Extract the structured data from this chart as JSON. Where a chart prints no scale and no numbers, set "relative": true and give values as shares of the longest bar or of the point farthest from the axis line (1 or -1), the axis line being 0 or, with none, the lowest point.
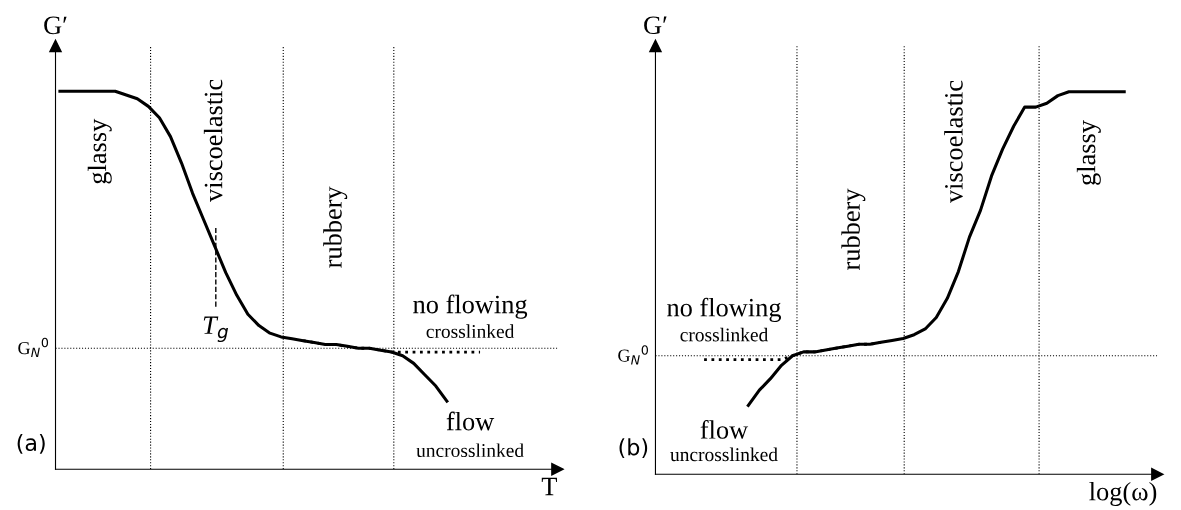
{
  "chart_data": [
    {
      "type": "line",
      "relative": true,
      "xlabel": "T",
      "ylabel": "G′",
      "grid": false,
      "legend": false,
      "marker": "none",
      "categories": [
        null,
        null,
        null,
        null,
        null,
        null,
        null,
        null,
        null,
        null,
        null,
        null,
        null,
        null,
        null,
        null,
        null,
        null,
        null,
        null,
        null,
        null,
        null,
        null,
        null,
        null,
        null,
        null,
        null,
        null,
        null,
        null,
        null,
        null,
        null,
        null,
        null,
        null,
        null,
        null,
        null,
        null,
        null,
        null,
        null
      ],
      "series": [
        {
          "color": "#000000",
          "line_style": "solid",
          "values": [
            1.0,
            1.0,
            1.0,
            1.0,
            1.0,
            1.0,
            0.99,
            0.98,
            0.96,
            0.93,
            0.88,
            0.81,
            0.73,
            0.66,
            0.59,
            0.52,
            0.46,
            0.41,
            0.38,
            0.36,
            0.35,
            0.345,
            0.34,
            0.335,
            0.33,
            0.33,
            0.325,
            0.32,
            0.32,
            0.315,
            0.31,
            0.3,
            0.28,
            0.25,
            0.22,
            0.18,
            null,
            null,
            null,
            null,
            null,
            null,
            null,
            null,
            null
          ]
        },
        {
          "color": "#000000",
          "line_style": "dotted",
          "values": [
            null,
            null,
            null,
            null,
            null,
            null,
            null,
            null,
            null,
            null,
            null,
            null,
            null,
            null,
            null,
            null,
            null,
            null,
            null,
            null,
            null,
            null,
            0.34,
            0.335,
            0.33,
            0.33,
            0.325,
            0.32,
            0.32,
            0.315,
            0.31,
            0.31,
            0.31,
            0.31,
            0.31,
            0.31,
            0.31,
            0.31,
            0.31,
            null,
            null,
            null,
            null,
            null,
            null
          ]
        }
      ],
      "ref_lines": [
        {
          "axis": "y",
          "value": 0.32,
          "label": "G$_{N}$$^{0}$",
          "line_style": "dotted",
          "color": "#000000"
        }
      ],
      "annotations": [
        "glassy",
        "viscoelastic",
        "rubbery",
        "no flowing",
        "crosslinked",
        "flow",
        "uncrosslinked",
        "(a)",
        "T$_{g}$"
      ]
    },
    {
      "type": "line",
      "relative": true,
      "xlabel": "log(ω)",
      "ylabel": "G′",
      "grid": false,
      "legend": false,
      "marker": "none",
      "categories": [
        null,
        null,
        null,
        null,
        null,
        null,
        null,
        null,
        null,
        null,
        null,
        null,
        null,
        null,
        null,
        null,
        null,
        null,
        null,
        null,
        null,
        null,
        null,
        null,
        null,
        null,
        null,
        null,
        null,
        null,
        null,
        null,
        null,
        null,
        null,
        null,
        null,
        null,
        null,
        null,
        null,
        null,
        null,
        null,
        null
      ],
      "series": [
        {
          "color": "#000000",
          "line_style": "solid",
          "values": [
            null,
            null,
            null,
            null,
            null,
            null,
            null,
            null,
            0.18,
            0.22,
            0.25,
            0.285,
            0.31,
            0.32,
            0.32,
            0.325,
            0.33,
            0.335,
            0.34,
            0.34,
            0.345,
            0.35,
            0.355,
            0.365,
            0.38,
            0.41,
            0.46,
            0.53,
            0.62,
            0.69,
            0.78,
            0.85,
            0.91,
            0.96,
            0.96,
            0.97,
            0.99,
            1.0,
            1.0,
            1.0,
            1.0,
            1.0,
            1.0,
            null,
            null
          ]
        },
        {
          "color": "#000000",
          "line_style": "dotted",
          "values": [
            null,
            null,
            null,
            null,
            0.3,
            0.3,
            0.3,
            0.3,
            0.3,
            0.3,
            0.3,
            0.3,
            0.31,
            0.32,
            0.32,
            0.325,
            0.33,
            0.335,
            0.34,
            0.34,
            0.345,
            null,
            null,
            null,
            null,
            null,
            null,
            null,
            null,
            null,
            null,
            null,
            null,
            null,
            null,
            null,
            null,
            null,
            null,
            null,
            null,
            null,
            null,
            null,
            null
          ]
        }
      ],
      "ref_lines": [
        {
          "axis": "y",
          "value": 0.31,
          "label": "G$_{N}$$^{0}$",
          "line_style": "dotted",
          "color": "#000000"
        }
      ],
      "annotations": [
        "glassy",
        "viscoelastic",
        "rubbery",
        "no flowing",
        "crosslinked",
        "flow",
        "uncrosslinked",
        "(b)"
      ]
    }
  ]
}
